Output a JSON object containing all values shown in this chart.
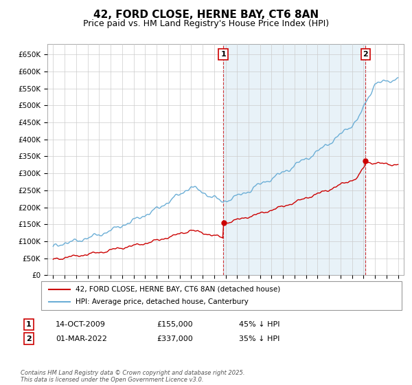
{
  "title": "42, FORD CLOSE, HERNE BAY, CT6 8AN",
  "subtitle": "Price paid vs. HM Land Registry's House Price Index (HPI)",
  "title_fontsize": 11,
  "subtitle_fontsize": 9,
  "ylabel_ticks": [
    "£0",
    "£50K",
    "£100K",
    "£150K",
    "£200K",
    "£250K",
    "£300K",
    "£350K",
    "£400K",
    "£450K",
    "£500K",
    "£550K",
    "£600K",
    "£650K"
  ],
  "ytick_values": [
    0,
    50000,
    100000,
    150000,
    200000,
    250000,
    300000,
    350000,
    400000,
    450000,
    500000,
    550000,
    600000,
    650000
  ],
  "ylim": [
    0,
    680000
  ],
  "hpi_color": "#6baed6",
  "property_color": "#cc0000",
  "shade_color": "#ddeeff",
  "annotation1_date": "14-OCT-2009",
  "annotation1_price": "£155,000",
  "annotation1_pct": "45% ↓ HPI",
  "annotation2_date": "01-MAR-2022",
  "annotation2_price": "£337,000",
  "annotation2_pct": "35% ↓ HPI",
  "legend_label1": "42, FORD CLOSE, HERNE BAY, CT6 8AN (detached house)",
  "legend_label2": "HPI: Average price, detached house, Canterbury",
  "footnote": "Contains HM Land Registry data © Crown copyright and database right 2025.\nThis data is licensed under the Open Government Licence v3.0.",
  "vline1_year": 2009.8,
  "vline2_year": 2022.17,
  "background_color": "#ffffff",
  "grid_color": "#cccccc"
}
